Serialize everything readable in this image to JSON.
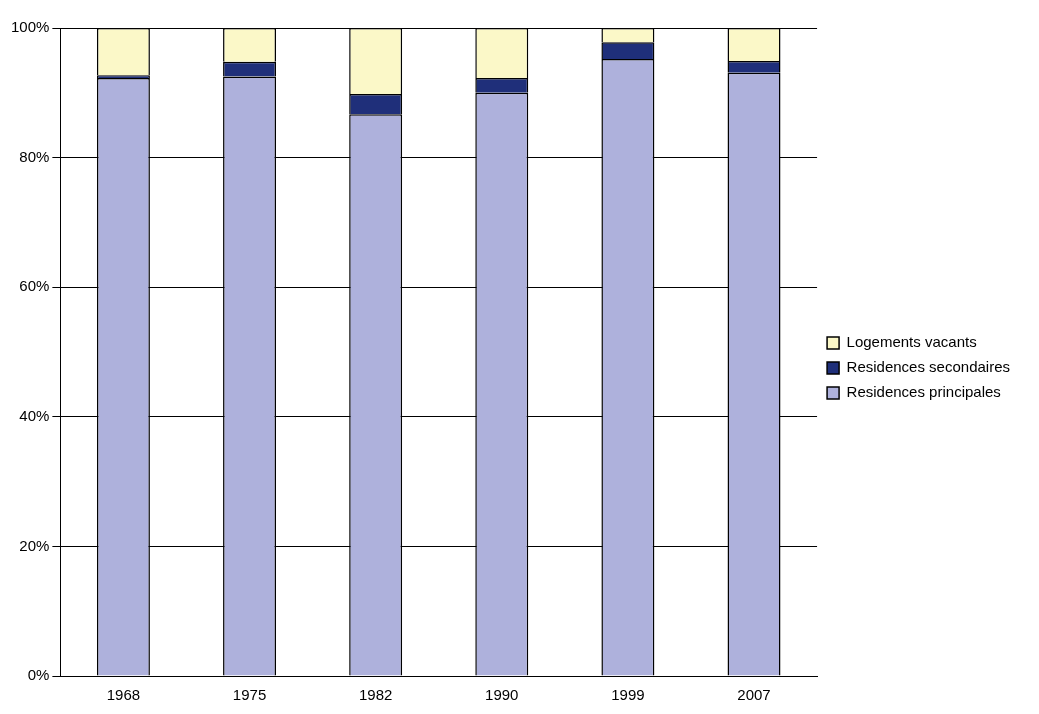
{
  "chart_data": {
    "type": "bar",
    "stacked": true,
    "categories": [
      "1968",
      "1975",
      "1982",
      "1990",
      "1999",
      "2007"
    ],
    "series": [
      {
        "name": "Residences principales",
        "color": "#aeb1dc",
        "values": [
          92.3,
          92.5,
          86.7,
          90,
          95.2,
          93.1
        ]
      },
      {
        "name": "Residences secondaires",
        "color": "#1f2f7a",
        "values": [
          0.4,
          2.3,
          3.1,
          2.3,
          2.6,
          1.8
        ]
      },
      {
        "name": "Logements vacants",
        "color": "#fbf8c8",
        "values": [
          7.3,
          5.2,
          10.2,
          7.7,
          2.2,
          5.1
        ]
      }
    ],
    "ylim": [
      0,
      100
    ],
    "yticks": [
      {
        "value": 0,
        "label": "0%"
      },
      {
        "value": 20,
        "label": "20%"
      },
      {
        "value": 40,
        "label": "40%"
      },
      {
        "value": 60,
        "label": "60%"
      },
      {
        "value": 80,
        "label": "80%"
      },
      {
        "value": 100,
        "label": "100%"
      }
    ],
    "grid": "y",
    "legend": "right"
  }
}
